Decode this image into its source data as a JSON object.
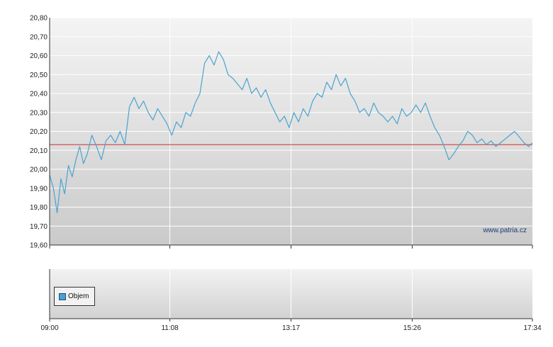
{
  "chart_data": {
    "type": "line",
    "y_ticks": [
      "19,60",
      "19,70",
      "19,80",
      "19,90",
      "20,00",
      "20,10",
      "20,20",
      "20,30",
      "20,40",
      "20,50",
      "20,60",
      "20,70",
      "20,80"
    ],
    "ylim": [
      19.6,
      20.8
    ],
    "x_ticks": [
      "09:00",
      "11:08",
      "13:17",
      "15:26",
      "17:34"
    ],
    "xlim": [
      "09:00",
      "17:34"
    ],
    "reference_line": 20.13,
    "watermark": "www.patria.cz",
    "legend": {
      "label": "Objem",
      "color": "#4a9fd0"
    },
    "line_color": "#4aa3cf",
    "reference_color": "#cc3333",
    "series": [
      {
        "x": [
          "09:00",
          "09:04",
          "09:08",
          "09:12",
          "09:16",
          "09:20",
          "09:24",
          "09:28",
          "09:32",
          "09:36",
          "09:40",
          "09:45",
          "09:50",
          "09:55",
          "10:00",
          "10:05",
          "10:10",
          "10:15",
          "10:20",
          "10:25",
          "10:30",
          "10:35",
          "10:40",
          "10:45",
          "10:50",
          "10:55",
          "11:00",
          "11:05",
          "11:10",
          "11:15",
          "11:20",
          "11:25",
          "11:30",
          "11:35",
          "11:40",
          "11:45",
          "11:50",
          "11:55",
          "12:00",
          "12:05",
          "12:10",
          "12:15",
          "12:20",
          "12:25",
          "12:30",
          "12:35",
          "12:40",
          "12:45",
          "12:50",
          "12:55",
          "13:00",
          "13:05",
          "13:10",
          "13:15",
          "13:20",
          "13:25",
          "13:30",
          "13:35",
          "13:40",
          "13:45",
          "13:50",
          "13:55",
          "14:00",
          "14:05",
          "14:10",
          "14:15",
          "14:20",
          "14:25",
          "14:30",
          "14:35",
          "14:40",
          "14:45",
          "14:50",
          "14:55",
          "15:00",
          "15:05",
          "15:10",
          "15:15",
          "15:20",
          "15:25",
          "15:30",
          "15:35",
          "15:40",
          "15:45",
          "15:50",
          "15:55",
          "16:00",
          "16:05",
          "16:10",
          "16:15",
          "16:20",
          "16:25",
          "16:30",
          "16:35",
          "16:40",
          "16:45",
          "16:50",
          "16:55",
          "17:00",
          "17:05",
          "17:10",
          "17:15",
          "17:20",
          "17:25",
          "17:30",
          "17:34"
        ],
        "values": [
          19.97,
          19.9,
          19.77,
          19.95,
          19.87,
          20.02,
          19.96,
          20.05,
          20.12,
          20.03,
          20.08,
          20.18,
          20.12,
          20.05,
          20.15,
          20.18,
          20.14,
          20.2,
          20.13,
          20.33,
          20.38,
          20.32,
          20.36,
          20.3,
          20.26,
          20.32,
          20.28,
          20.24,
          20.18,
          20.25,
          20.22,
          20.3,
          20.28,
          20.35,
          20.4,
          20.56,
          20.6,
          20.55,
          20.62,
          20.58,
          20.5,
          20.48,
          20.45,
          20.42,
          20.48,
          20.4,
          20.43,
          20.38,
          20.42,
          20.35,
          20.3,
          20.25,
          20.28,
          20.22,
          20.3,
          20.25,
          20.32,
          20.28,
          20.36,
          20.4,
          20.38,
          20.46,
          20.42,
          20.5,
          20.44,
          20.48,
          20.4,
          20.36,
          20.3,
          20.32,
          20.28,
          20.35,
          20.3,
          20.28,
          20.25,
          20.28,
          20.24,
          20.32,
          20.28,
          20.3,
          20.34,
          20.3,
          20.35,
          20.28,
          20.22,
          20.18,
          20.12,
          20.05,
          20.08,
          20.12,
          20.15,
          20.2,
          20.18,
          20.14,
          20.16,
          20.13,
          20.15,
          20.12,
          20.14,
          20.16,
          20.18,
          20.2,
          20.17,
          20.14,
          20.12,
          20.14
        ]
      }
    ]
  }
}
